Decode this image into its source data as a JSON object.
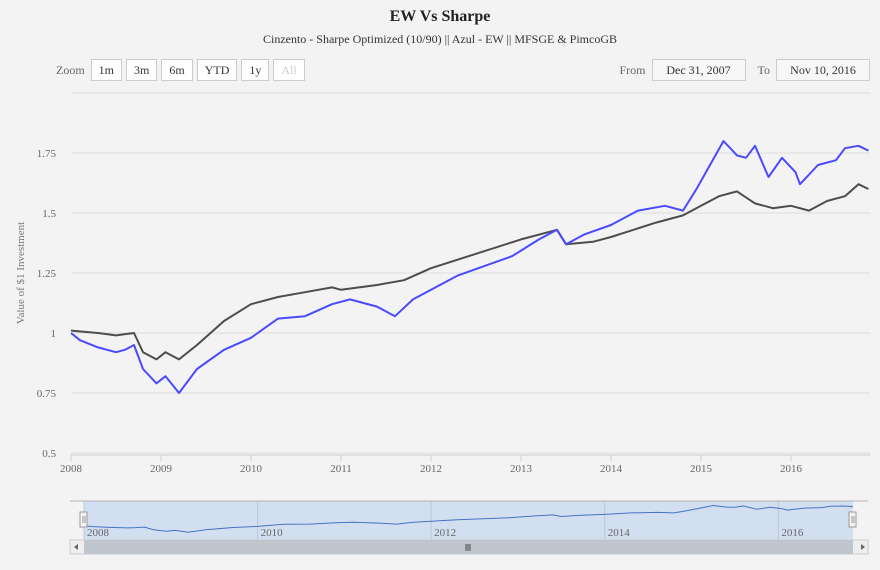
{
  "header": {
    "title": "EW Vs Sharpe",
    "subtitle": "Cinzento - Sharpe Optimized (10/90) || Azul - EW || MFSGE & PimcoGB"
  },
  "range_selector": {
    "zoom_label": "Zoom",
    "buttons": [
      "1m",
      "3m",
      "6m",
      "YTD",
      "1y",
      "All"
    ],
    "selected": "All",
    "from_label": "From",
    "from_value": "Dec 31, 2007",
    "to_label": "To",
    "to_value": "Nov 10, 2016"
  },
  "chart_data": {
    "type": "line",
    "title": "EW Vs Sharpe",
    "subtitle": "Cinzento - Sharpe Optimized (10/90) || Azul - EW || MFSGE & PimcoGB",
    "ylabel": "Value of $1 Investment",
    "xlabel": "",
    "xlim": [
      2008.0,
      2016.86
    ],
    "ylim": [
      0.5,
      2.0
    ],
    "x_ticks": [
      "2008",
      "2009",
      "2010",
      "2011",
      "2012",
      "2013",
      "2014",
      "2015",
      "2016"
    ],
    "y_ticks": [
      "0.5",
      "0.75",
      "1",
      "1.25",
      "1.5",
      "1.75"
    ],
    "grid": true,
    "colors": {
      "sharpe": "#4d4d4d",
      "ew": "#4a4aff",
      "navigator": "#4572c4"
    },
    "series": [
      {
        "key": "sharpe",
        "x": [
          2008.0,
          2008.3,
          2008.5,
          2008.7,
          2008.8,
          2008.95,
          2009.05,
          2009.2,
          2009.4,
          2009.7,
          2010.0,
          2010.3,
          2010.6,
          2010.9,
          2011.0,
          2011.4,
          2011.7,
          2012.0,
          2012.5,
          2013.0,
          2013.4,
          2013.5,
          2013.8,
          2014.0,
          2014.5,
          2014.8,
          2015.0,
          2015.2,
          2015.4,
          2015.6,
          2015.8,
          2016.0,
          2016.2,
          2016.4,
          2016.6,
          2016.75,
          2016.86
        ],
        "values": [
          1.01,
          1.0,
          0.99,
          1.0,
          0.92,
          0.89,
          0.92,
          0.89,
          0.95,
          1.05,
          1.12,
          1.15,
          1.17,
          1.19,
          1.18,
          1.2,
          1.22,
          1.27,
          1.33,
          1.39,
          1.43,
          1.37,
          1.38,
          1.4,
          1.46,
          1.49,
          1.53,
          1.57,
          1.59,
          1.54,
          1.52,
          1.53,
          1.51,
          1.55,
          1.57,
          1.62,
          1.6
        ]
      },
      {
        "key": "ew",
        "x": [
          2008.0,
          2008.1,
          2008.3,
          2008.5,
          2008.6,
          2008.7,
          2008.8,
          2008.95,
          2009.05,
          2009.2,
          2009.4,
          2009.7,
          2010.0,
          2010.3,
          2010.6,
          2010.9,
          2011.1,
          2011.4,
          2011.6,
          2011.8,
          2012.0,
          2012.3,
          2012.6,
          2012.9,
          2013.2,
          2013.4,
          2013.5,
          2013.7,
          2014.0,
          2014.3,
          2014.6,
          2014.8,
          2014.95,
          2015.1,
          2015.25,
          2015.4,
          2015.5,
          2015.6,
          2015.75,
          2015.9,
          2016.05,
          2016.1,
          2016.3,
          2016.5,
          2016.6,
          2016.75,
          2016.86
        ],
        "values": [
          1.0,
          0.97,
          0.94,
          0.92,
          0.93,
          0.95,
          0.85,
          0.79,
          0.82,
          0.75,
          0.85,
          0.93,
          0.98,
          1.06,
          1.07,
          1.12,
          1.14,
          1.11,
          1.07,
          1.14,
          1.18,
          1.24,
          1.28,
          1.32,
          1.39,
          1.43,
          1.37,
          1.41,
          1.45,
          1.51,
          1.53,
          1.51,
          1.6,
          1.7,
          1.8,
          1.74,
          1.73,
          1.78,
          1.65,
          1.73,
          1.67,
          1.62,
          1.7,
          1.72,
          1.77,
          1.78,
          1.76
        ]
      }
    ],
    "navigator": {
      "x_ticks": [
        "2008",
        "2010",
        "2012",
        "2014",
        "2016"
      ],
      "series_key": "ew"
    }
  }
}
